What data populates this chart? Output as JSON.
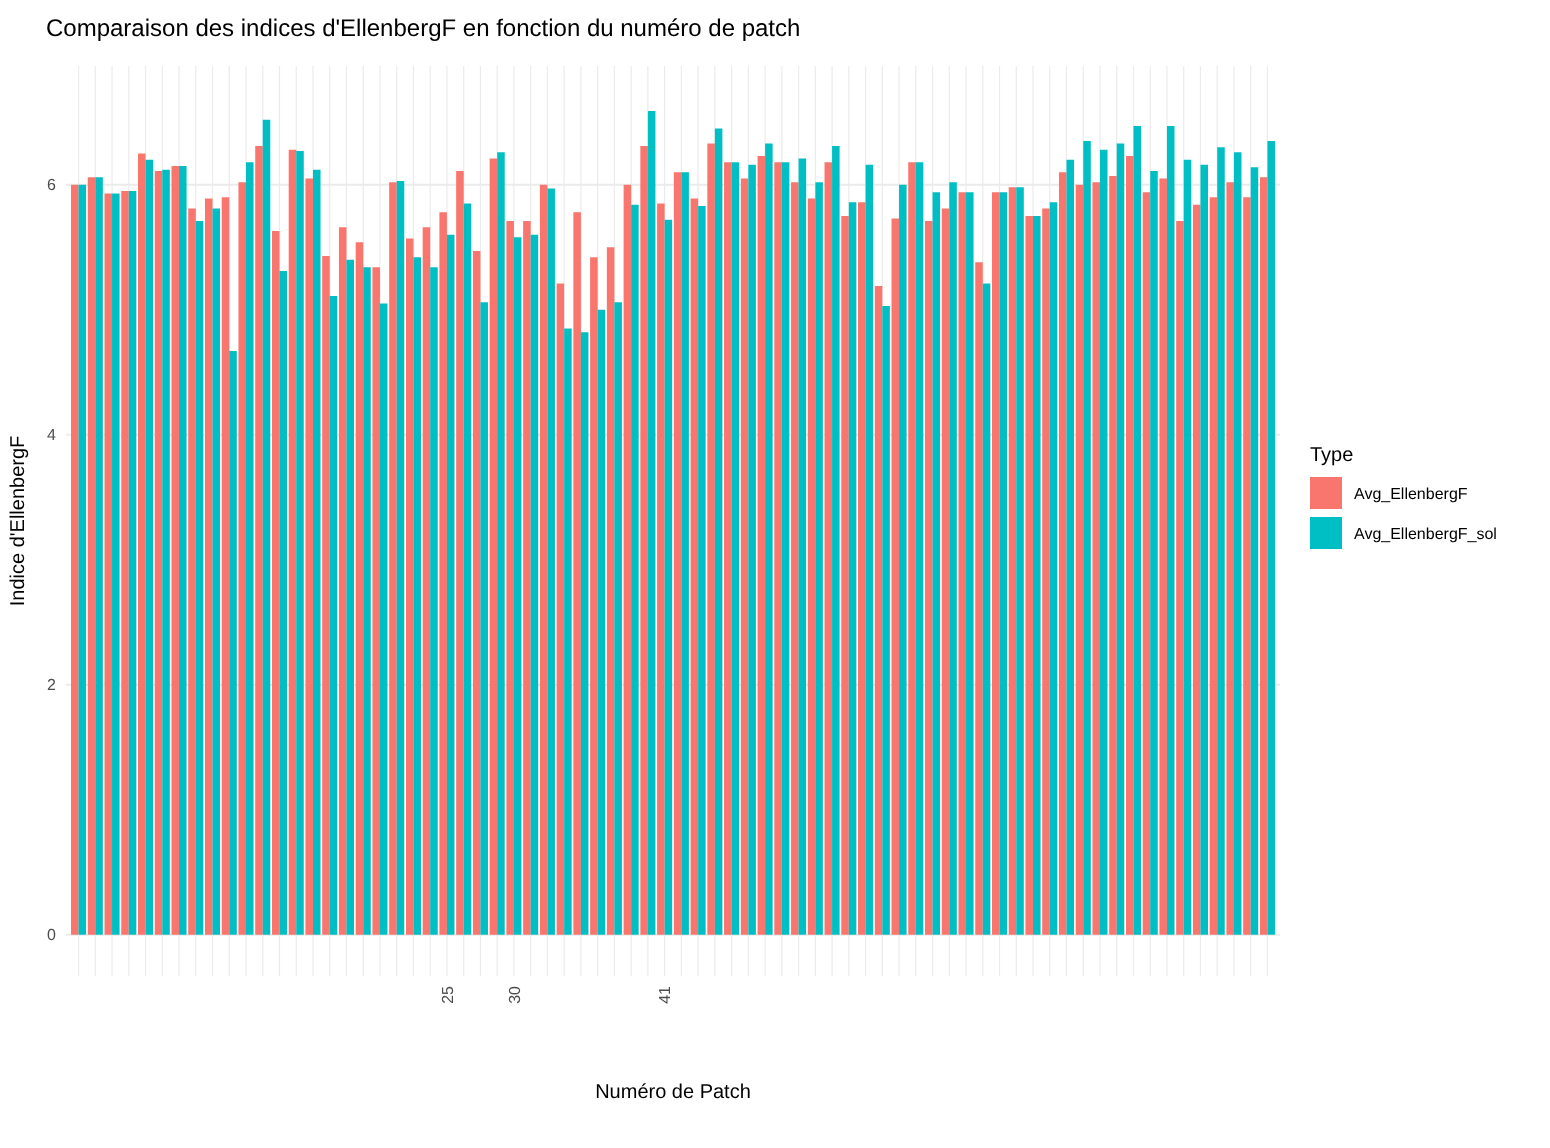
{
  "chart_data": {
    "type": "bar",
    "title": "Comparaison des indices d'EllenbergF en fonction du numéro de patch",
    "xlabel": "Numéro de Patch",
    "ylabel": "Indice d'EllenbergF",
    "legend_title": "Type",
    "legend": "right",
    "grid": true,
    "categories": [
      null,
      null,
      null,
      null,
      null,
      null,
      null,
      null,
      null,
      null,
      null,
      null,
      null,
      null,
      null,
      null,
      null,
      null,
      null,
      null,
      null,
      null,
      "25",
      null,
      null,
      null,
      "30",
      null,
      null,
      null,
      null,
      null,
      null,
      null,
      null,
      "41",
      null,
      null,
      null,
      null,
      null,
      null,
      null,
      null,
      null,
      null,
      null,
      null,
      null,
      null,
      null,
      null,
      null,
      null,
      null,
      null,
      null,
      null,
      null,
      null,
      null,
      null,
      null,
      null,
      null,
      null,
      null,
      null,
      null,
      null,
      null,
      null
    ],
    "ylim": [
      -0.33,
      6.95
    ],
    "yticks": [
      0,
      2,
      4,
      6
    ],
    "series": [
      {
        "name": "Avg_EllenbergF",
        "color": "#f8766d",
        "values": [
          6.0,
          6.06,
          5.93,
          5.95,
          6.25,
          6.11,
          6.15,
          5.81,
          5.89,
          5.9,
          6.02,
          6.31,
          5.63,
          6.28,
          6.05,
          5.43,
          5.66,
          5.54,
          5.34,
          6.02,
          5.57,
          5.66,
          5.78,
          6.11,
          5.47,
          6.21,
          5.71,
          5.71,
          6.0,
          5.21,
          5.78,
          5.42,
          5.5,
          6.0,
          6.31,
          5.85,
          6.1,
          5.89,
          6.33,
          6.18,
          6.05,
          6.23,
          6.18,
          6.02,
          5.89,
          6.18,
          5.75,
          5.86,
          5.19,
          5.73,
          6.18,
          5.71,
          5.81,
          5.94,
          5.38,
          5.94,
          5.98,
          5.75,
          5.81,
          6.1,
          6.0,
          6.02,
          6.07,
          6.23,
          5.94,
          6.05,
          5.71,
          5.84,
          5.9,
          6.02,
          5.9,
          6.06
        ]
      },
      {
        "name": "Avg_EllenbergF_sol",
        "color": "#00bfc4",
        "values": [
          6.0,
          6.06,
          5.93,
          5.95,
          6.2,
          6.12,
          6.15,
          5.71,
          5.81,
          4.67,
          6.18,
          6.52,
          5.31,
          6.27,
          6.12,
          5.11,
          5.4,
          5.34,
          5.05,
          6.03,
          5.42,
          5.34,
          5.6,
          5.85,
          5.06,
          6.26,
          5.58,
          5.6,
          5.97,
          4.85,
          4.82,
          5.0,
          5.06,
          5.84,
          6.59,
          5.72,
          6.1,
          5.83,
          6.45,
          6.18,
          6.16,
          6.33,
          6.18,
          6.21,
          6.02,
          6.31,
          5.86,
          6.16,
          5.03,
          6.0,
          6.18,
          5.94,
          6.02,
          5.94,
          5.21,
          5.94,
          5.98,
          5.75,
          5.86,
          6.2,
          6.35,
          6.28,
          6.33,
          6.47,
          6.11,
          6.47,
          6.2,
          6.16,
          6.3,
          6.26,
          6.14,
          6.35
        ]
      }
    ]
  }
}
